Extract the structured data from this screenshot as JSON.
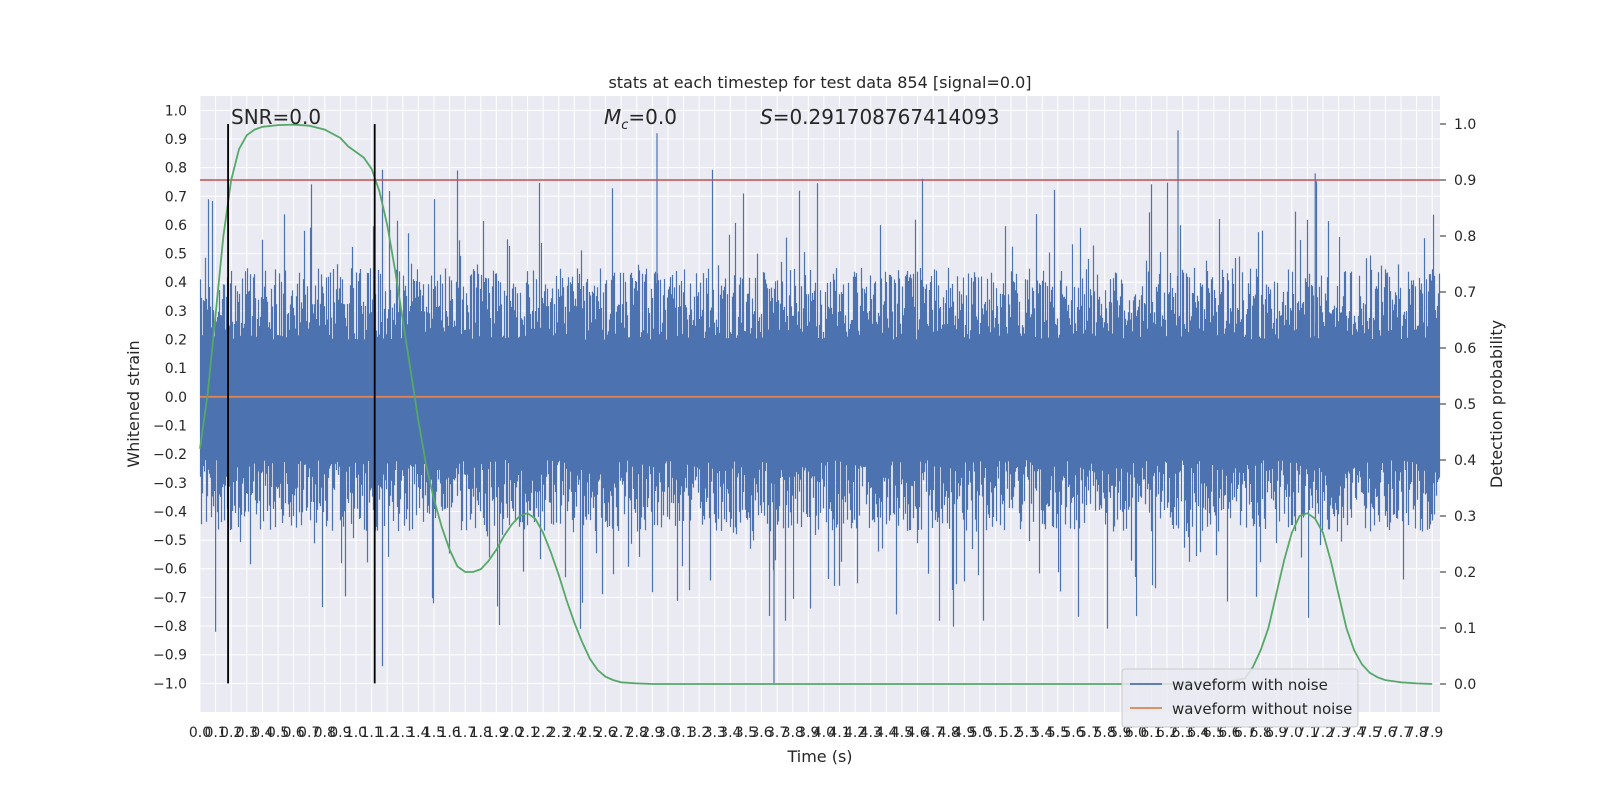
{
  "chart_data": {
    "type": "line",
    "title": "stats at each timestep for test data 854 [signal=0.0]",
    "xlabel": "Time (s)",
    "ylabel": "Whitened strain",
    "y2label": "Detection probability",
    "xlim": [
      0.0,
      7.95
    ],
    "ylim": [
      -1.1,
      1.05
    ],
    "y2lim": [
      -0.05,
      1.05
    ],
    "x_ticks": [
      "0.0",
      "0.1",
      "0.2",
      "0.3",
      "0.4",
      "0.5",
      "0.6",
      "0.7",
      "0.8",
      "0.9",
      "1.0",
      "1.1",
      "1.2",
      "1.3",
      "1.4",
      "1.5",
      "1.6",
      "1.7",
      "1.8",
      "1.9",
      "2.0",
      "2.1",
      "2.2",
      "2.3",
      "2.4",
      "2.5",
      "2.6",
      "2.7",
      "2.8",
      "2.9",
      "3.0",
      "3.1",
      "3.2",
      "3.3",
      "3.4",
      "3.5",
      "3.6",
      "3.7",
      "3.8",
      "3.9",
      "4.0",
      "4.1",
      "4.2",
      "4.3",
      "4.4",
      "4.5",
      "4.6",
      "4.7",
      "4.8",
      "4.9",
      "5.0",
      "5.1",
      "5.2",
      "5.3",
      "5.4",
      "5.5",
      "5.6",
      "5.7",
      "5.8",
      "5.9",
      "6.0",
      "6.1",
      "6.2",
      "6.3",
      "6.4",
      "6.5",
      "6.6",
      "6.7",
      "6.8",
      "6.9",
      "7.0",
      "7.1",
      "7.2",
      "7.3",
      "7.4",
      "7.5",
      "7.6",
      "7.7",
      "7.8",
      "7.9"
    ],
    "y_ticks": [
      "1.0",
      "0.9",
      "0.8",
      "0.7",
      "0.6",
      "0.5",
      "0.4",
      "0.3",
      "0.2",
      "0.1",
      "0.0",
      "−0.1",
      "−0.2",
      "−0.3",
      "−0.4",
      "−0.5",
      "−0.6",
      "−0.7",
      "−0.8",
      "−0.9",
      "−1.0"
    ],
    "y_tick_values": [
      1.0,
      0.9,
      0.8,
      0.7,
      0.6,
      0.5,
      0.4,
      0.3,
      0.2,
      0.1,
      0.0,
      -0.1,
      -0.2,
      -0.3,
      -0.4,
      -0.5,
      -0.6,
      -0.7,
      -0.8,
      -0.9,
      -1.0
    ],
    "y2_ticks": [
      "1.0",
      "0.9",
      "0.8",
      "0.7",
      "0.6",
      "0.5",
      "0.4",
      "0.3",
      "0.2",
      "0.1",
      "0.0"
    ],
    "y2_tick_values": [
      1.0,
      0.9,
      0.8,
      0.7,
      0.6,
      0.5,
      0.4,
      0.3,
      0.2,
      0.1,
      0.0
    ],
    "grid": true,
    "annotations": {
      "snr": "SNR=0.0",
      "mc": "M",
      "mc_sub": "c",
      "mc_value": "=0.0",
      "s_symbol": "S",
      "s_value": "=0.291708767414093"
    },
    "legend": {
      "placement": "lower-right",
      "entries": [
        "waveform with noise",
        "waveform without noise"
      ]
    },
    "vertical_markers_x": [
      0.18,
      1.12
    ],
    "threshold_y2": 0.9,
    "series": [
      {
        "name": "waveform with noise",
        "color": "#4c72b0",
        "noise_envelope": {
          "upper_typical": 0.45,
          "lower_typical": -0.45,
          "max": 0.93,
          "min": -1.0,
          "peaks": [
            [
              0.1,
              -0.82
            ],
            [
              1.17,
              -0.94
            ],
            [
              3.68,
              -1.0
            ],
            [
              2.93,
              0.92
            ],
            [
              6.27,
              0.93
            ],
            [
              7.15,
              0.78
            ]
          ]
        }
      },
      {
        "name": "waveform without noise",
        "color": "#dd8452",
        "x": [
          0.0,
          7.95
        ],
        "y": [
          0.0,
          0.0
        ]
      },
      {
        "name": "detection probability",
        "axis": "right",
        "color": "#55a868",
        "x": [
          0.0,
          0.05,
          0.1,
          0.15,
          0.2,
          0.25,
          0.3,
          0.35,
          0.4,
          0.5,
          0.6,
          0.7,
          0.8,
          0.9,
          0.95,
          1.0,
          1.05,
          1.1,
          1.15,
          1.2,
          1.25,
          1.3,
          1.35,
          1.4,
          1.45,
          1.5,
          1.55,
          1.6,
          1.65,
          1.7,
          1.75,
          1.8,
          1.85,
          1.9,
          1.95,
          2.0,
          2.05,
          2.1,
          2.15,
          2.2,
          2.25,
          2.3,
          2.35,
          2.4,
          2.45,
          2.5,
          2.55,
          2.6,
          2.65,
          2.7,
          2.8,
          2.9,
          3.0,
          3.5,
          4.0,
          5.0,
          6.0,
          6.5,
          6.7,
          6.75,
          6.8,
          6.85,
          6.9,
          6.95,
          7.0,
          7.05,
          7.1,
          7.15,
          7.2,
          7.25,
          7.3,
          7.35,
          7.4,
          7.45,
          7.5,
          7.55,
          7.6,
          7.7,
          7.8,
          7.9
        ],
        "y": [
          0.42,
          0.52,
          0.66,
          0.8,
          0.9,
          0.955,
          0.98,
          0.99,
          0.995,
          0.998,
          0.999,
          0.997,
          0.99,
          0.975,
          0.96,
          0.95,
          0.94,
          0.92,
          0.88,
          0.82,
          0.74,
          0.65,
          0.56,
          0.47,
          0.39,
          0.33,
          0.28,
          0.24,
          0.21,
          0.2,
          0.2,
          0.205,
          0.22,
          0.24,
          0.265,
          0.285,
          0.3,
          0.305,
          0.295,
          0.27,
          0.235,
          0.195,
          0.15,
          0.11,
          0.075,
          0.045,
          0.025,
          0.013,
          0.007,
          0.003,
          0.001,
          0.0,
          0.0,
          0.0,
          0.0,
          0.0,
          0.0,
          0.0,
          0.01,
          0.03,
          0.06,
          0.1,
          0.16,
          0.22,
          0.27,
          0.3,
          0.305,
          0.295,
          0.27,
          0.22,
          0.16,
          0.1,
          0.06,
          0.035,
          0.02,
          0.012,
          0.007,
          0.003,
          0.001,
          0.0
        ]
      }
    ]
  }
}
